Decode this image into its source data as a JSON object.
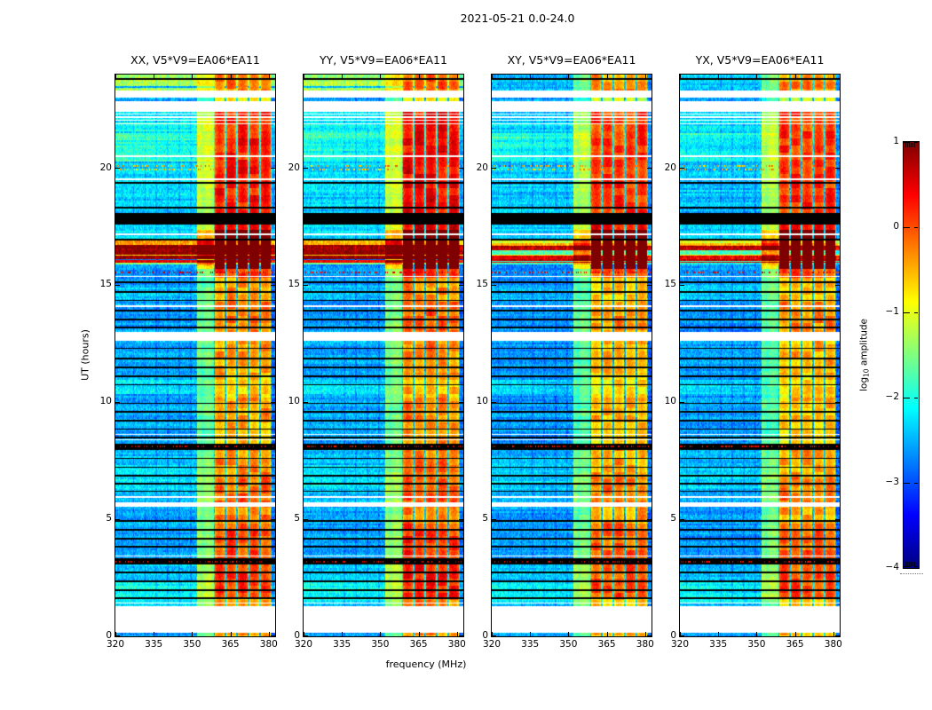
{
  "chart_data": {
    "type": "heatmap",
    "title": "2021-05-21 0.0-24.0",
    "xlabel": "frequency (MHz)",
    "ylabel": "UT (hours)",
    "x_range": [
      320,
      382.5
    ],
    "x_tick_values": [
      320,
      335,
      350,
      365,
      380
    ],
    "x_tick_labels": [
      "320",
      "335",
      "350",
      "365",
      "380"
    ],
    "y_range": [
      0,
      24
    ],
    "y_tick_values": [
      0,
      5,
      10,
      15,
      20
    ],
    "y_tick_labels": [
      "0",
      "5",
      "10",
      "15",
      "20"
    ],
    "grid": false,
    "panels": [
      {
        "title": "XX, V5*V9=EA06*EA11",
        "pol": "XX",
        "group": "co"
      },
      {
        "title": "YY, V5*V9=EA06*EA11",
        "pol": "YY",
        "group": "co"
      },
      {
        "title": "XY, V5*V9=EA06*EA11",
        "pol": "XY",
        "group": "cross"
      },
      {
        "title": "YX, V5*V9=EA06*EA11",
        "pol": "YX",
        "group": "cross"
      }
    ],
    "colorbar": {
      "label": "log10 amplitude",
      "label_prefix": "log",
      "label_sub": "10",
      "label_suffix": " amplitude",
      "tick_values": [
        1,
        0,
        -1,
        -2,
        -3,
        -4
      ],
      "tick_labels": [
        "1",
        "0",
        "−1",
        "−2",
        "−3",
        "−4"
      ],
      "range": [
        -4,
        1
      ],
      "colormap": "jet",
      "position": "right"
    },
    "features": {
      "white_gaps_hours": [
        [
          23.02,
          23.33
        ],
        [
          22.4,
          22.87
        ],
        [
          12.62,
          13.02
        ],
        [
          5.52,
          5.74
        ],
        [
          0.16,
          1.28
        ]
      ],
      "black_bands_hours": [
        [
          17.58,
          18.08
        ],
        [
          7.98,
          8.22
        ],
        [
          3.06,
          3.32
        ]
      ],
      "black_lines_hours": [
        23.82,
        19.38,
        18.3,
        16.95,
        15.12,
        14.72,
        14.35,
        13.92,
        13.55,
        13.18,
        12.3,
        11.88,
        11.5,
        11.12,
        10.75,
        9.95,
        9.6,
        9.22,
        8.85,
        8.5,
        7.6,
        7.22,
        6.85,
        6.52,
        6.2,
        4.92,
        4.55,
        4.18,
        3.82,
        2.72,
        2.35,
        1.98,
        1.62
      ],
      "white_lines_hours": [
        22.32,
        22.18,
        22.04,
        21.9,
        20.52,
        19.52,
        17.18,
        15.38,
        14.1,
        8.62,
        8.4,
        5.95,
        3.44,
        1.42
      ],
      "cyan_lines_hours": [
        23.46
      ],
      "speckle_rows": [
        {
          "hour": 20.08,
          "value": -0.5
        },
        {
          "hour": 19.94,
          "value": -0.6
        },
        {
          "hour": 15.56,
          "value": 0.5
        },
        {
          "hour": 8.1,
          "value": 0.5
        },
        {
          "hour": 3.2,
          "value": 0.5
        }
      ],
      "rfi_band_mhz": [
        358.5,
        381
      ],
      "rfi_weak_band_mhz": [
        352,
        358.5
      ],
      "rfi_subband_width_mhz": 4.5,
      "burst": {
        "co_core_hours": [
          16.12,
          16.72
        ],
        "cross_band1_hours": [
          16.48,
          16.7
        ],
        "cross_band2_hours": [
          16.04,
          16.3
        ],
        "halo_hours": [
          15.68,
          17.38
        ],
        "yellow_line_hour": 16.285,
        "blue_line_hour": 16.08,
        "red_line_hour": 15.97
      },
      "base_profile_co": [
        [
          23.33,
          24,
          -1.3
        ],
        [
          22.87,
          23.02,
          -2.5
        ],
        [
          21.3,
          22.4,
          -2.15
        ],
        [
          18.08,
          21.3,
          -2.35
        ],
        [
          17.0,
          17.58,
          -2.25
        ],
        [
          13.02,
          15.9,
          -2.6
        ],
        [
          8.22,
          12.62,
          -2.55
        ],
        [
          5.74,
          7.98,
          -2.45
        ],
        [
          3.32,
          5.52,
          -2.55
        ],
        [
          1.28,
          3.06,
          -2.35
        ],
        [
          0,
          0.16,
          -2.6
        ]
      ],
      "base_profile_cross": [
        [
          23.33,
          24,
          -2.4
        ],
        [
          22.87,
          23.02,
          -2.55
        ],
        [
          21.3,
          22.4,
          -2.3
        ],
        [
          18.08,
          21.3,
          -2.45
        ],
        [
          17.0,
          17.58,
          -2.35
        ],
        [
          13.02,
          15.9,
          -2.65
        ],
        [
          8.22,
          12.62,
          -2.6
        ],
        [
          5.74,
          7.98,
          -2.5
        ],
        [
          3.32,
          5.52,
          -2.6
        ],
        [
          1.28,
          3.06,
          -2.45
        ],
        [
          0,
          0.16,
          -2.6
        ]
      ],
      "bright_patches": [
        [
          20.3,
          21.5,
          0.3
        ],
        [
          10.35,
          10.95,
          0.3
        ],
        [
          6.3,
          7.3,
          0.2
        ],
        [
          14.4,
          15.0,
          0.2
        ],
        [
          1.4,
          2.4,
          0.25
        ]
      ],
      "rfi_profile": [
        [
          23.33,
          24,
          -0.35
        ],
        [
          22.87,
          23.33,
          -1.0
        ],
        [
          21.3,
          22.4,
          0.1
        ],
        [
          18.08,
          21.3,
          0.15
        ],
        [
          17.0,
          18.08,
          0.3
        ],
        [
          15.3,
          15.9,
          0.0
        ],
        [
          14.3,
          15.3,
          -0.55
        ],
        [
          13.02,
          14.3,
          -0.3
        ],
        [
          11.2,
          12.62,
          -0.5
        ],
        [
          10.2,
          11.2,
          -0.75
        ],
        [
          9.2,
          10.2,
          -0.5
        ],
        [
          8.22,
          9.2,
          -0.65
        ],
        [
          6.8,
          7.98,
          -0.4
        ],
        [
          5.74,
          6.8,
          -0.2
        ],
        [
          4.8,
          5.52,
          -0.4
        ],
        [
          3.32,
          4.8,
          -0.1
        ],
        [
          1.6,
          3.06,
          0.0
        ],
        [
          1.28,
          1.6,
          -0.5
        ],
        [
          0,
          0.16,
          -0.6
        ]
      ]
    }
  }
}
